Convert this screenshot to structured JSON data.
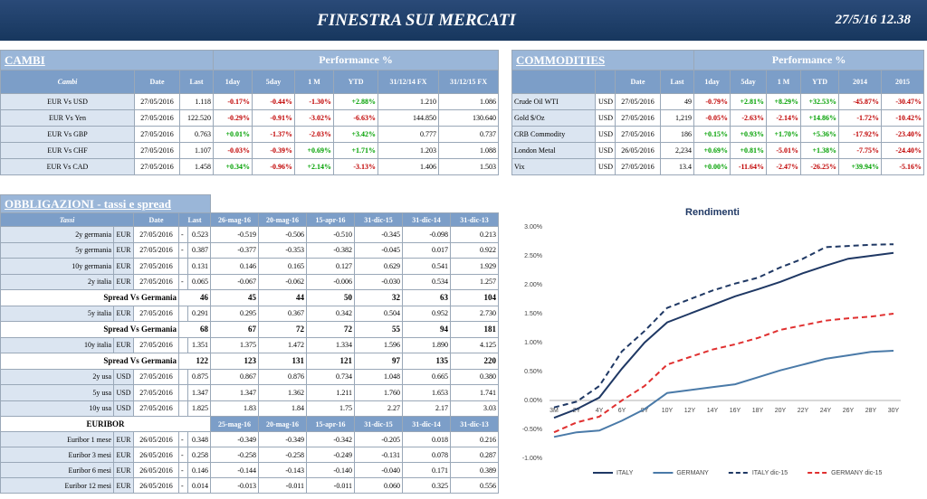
{
  "header": {
    "title": "FINESTRA SUI MERCATI",
    "timestamp": "27/5/16 12.38"
  },
  "cambi": {
    "title": "CAMBI",
    "group": "Performance %",
    "columns": [
      "Cambi",
      "Date",
      "Last",
      "1day",
      "5day",
      "1 M",
      "YTD",
      "31/12/14 FX",
      "31/12/15 FX"
    ],
    "rows": [
      [
        "EUR Vs USD",
        "27/05/2016",
        "1.118",
        "-0.17%",
        "-0.44%",
        "-1.30%",
        "+2.88%",
        "1.210",
        "1.086"
      ],
      [
        "EUR Vs Yen",
        "27/05/2016",
        "122.520",
        "-0.29%",
        "-0.91%",
        "-3.02%",
        "-6.63%",
        "144.850",
        "130.640"
      ],
      [
        "EUR Vs GBP",
        "27/05/2016",
        "0.763",
        "+0.01%",
        "-1.37%",
        "-2.03%",
        "+3.42%",
        "0.777",
        "0.737"
      ],
      [
        "EUR Vs CHF",
        "27/05/2016",
        "1.107",
        "-0.03%",
        "-0.39%",
        "+0.69%",
        "+1.71%",
        "1.203",
        "1.088"
      ],
      [
        "EUR Vs CAD",
        "27/05/2016",
        "1.458",
        "+0.34%",
        "-0.96%",
        "+2.14%",
        "-3.13%",
        "1.406",
        "1.503"
      ]
    ]
  },
  "commodities": {
    "title": "COMMODITIES",
    "group": "Performance %",
    "columns": [
      null,
      null,
      "Date",
      "Last",
      "1day",
      "5day",
      "1 M",
      "YTD",
      "2014",
      "2015"
    ],
    "rows": [
      [
        "Crude Oil WTI",
        "USD",
        "27/05/2016",
        "49",
        "-0.79%",
        "+2.81%",
        "+8.29%",
        "+32.53%",
        "-45.87%",
        "-30.47%"
      ],
      [
        "Gold $/Oz",
        "USD",
        "27/05/2016",
        "1,219",
        "-0.05%",
        "-2.63%",
        "-2.14%",
        "+14.86%",
        "-1.72%",
        "-10.42%"
      ],
      [
        "CRB Commodity",
        "USD",
        "27/05/2016",
        "186",
        "+0.15%",
        "+0.93%",
        "+1.70%",
        "+5.36%",
        "-17.92%",
        "-23.40%"
      ],
      [
        "London Metal",
        "USD",
        "26/05/2016",
        "2,234",
        "+0.69%",
        "+0.81%",
        "-5.01%",
        "+1.38%",
        "-7.75%",
        "-24.40%"
      ],
      [
        "Vix",
        "USD",
        "27/05/2016",
        "13.4",
        "+0.00%",
        "-11.64%",
        "-2.47%",
        "-26.25%",
        "+39.94%",
        "-5.16%"
      ]
    ]
  },
  "bonds": {
    "title": "OBBLIGAZIONI - tassi e spread",
    "columns": [
      "Tassi",
      "Date",
      "Last",
      "26-mag-16",
      "20-mag-16",
      "15-apr-16",
      "31-dic-15",
      "31-dic-14",
      "31-dic-13"
    ],
    "rows": [
      [
        "2y germania",
        "EUR",
        "27/05/2016",
        "-",
        "0.523",
        "-0.519",
        "-0.506",
        "-0.510",
        "-0.345",
        "-0.098",
        "0.213"
      ],
      [
        "5y germania",
        "EUR",
        "27/05/2016",
        "-",
        "0.387",
        "-0.377",
        "-0.353",
        "-0.382",
        "-0.045",
        "0.017",
        "0.922"
      ],
      [
        "10y germania",
        "EUR",
        "27/05/2016",
        null,
        "0.131",
        "0.146",
        "0.165",
        "0.127",
        "0.629",
        "0.541",
        "1.929"
      ],
      [
        "2y italia",
        "EUR",
        "27/05/2016",
        "-",
        "0.065",
        "-0.067",
        "-0.062",
        "-0.006",
        "-0.030",
        "0.534",
        "1.257"
      ],
      [
        "Spread Vs Germania",
        "46",
        "45",
        "44",
        "50",
        "32",
        "63",
        "104"
      ],
      [
        "5y italia",
        "EUR",
        "27/05/2016",
        null,
        "0.291",
        "0.295",
        "0.367",
        "0.342",
        "0.504",
        "0.952",
        "2.730"
      ],
      [
        "Spread Vs Germania",
        "68",
        "67",
        "72",
        "72",
        "55",
        "94",
        "181"
      ],
      [
        "10y italia",
        "EUR",
        "27/05/2016",
        null,
        "1.351",
        "1.375",
        "1.472",
        "1.334",
        "1.596",
        "1.890",
        "4.125"
      ],
      [
        "Spread Vs Germania",
        "122",
        "123",
        "131",
        "121",
        "97",
        "135",
        "220"
      ],
      [
        "2y usa",
        "USD",
        "27/05/2016",
        null,
        "0.875",
        "0.867",
        "0.876",
        "0.734",
        "1.048",
        "0.665",
        "0.380"
      ],
      [
        "5y usa",
        "USD",
        "27/05/2016",
        null,
        "1.347",
        "1.347",
        "1.362",
        "1.211",
        "1.760",
        "1.653",
        "1.741"
      ],
      [
        "10y usa",
        "USD",
        "27/05/2016",
        null,
        "1.825",
        "1.83",
        "1.84",
        "1.75",
        "2.27",
        "2.17",
        "3.03"
      ]
    ],
    "euribor": {
      "columns": [
        "EURIBOR",
        "25-mag-16",
        "20-mag-16",
        "15-apr-16",
        "31-dic-15",
        "31-dic-14",
        "31-dic-13"
      ],
      "rows": [
        [
          "Euribor 1 mese",
          "EUR",
          "26/05/2016",
          "-",
          "0.348",
          "-0.349",
          "-0.349",
          "-0.342",
          "-0.205",
          "0.018",
          "0.216"
        ],
        [
          "Euribor 3 mesi",
          "EUR",
          "26/05/2016",
          "-",
          "0.258",
          "-0.258",
          "-0.258",
          "-0.249",
          "-0.131",
          "0.078",
          "0.287"
        ],
        [
          "Euribor 6 mesi",
          "EUR",
          "26/05/2016",
          "-",
          "0.146",
          "-0.144",
          "-0.143",
          "-0.140",
          "-0.040",
          "0.171",
          "0.389"
        ],
        [
          "Euribor 12 mesi",
          "EUR",
          "26/05/2016",
          "-",
          "0.014",
          "-0.013",
          "-0.011",
          "-0.011",
          "0.060",
          "0.325",
          "0.556"
        ]
      ]
    }
  },
  "chart_data": {
    "type": "line",
    "title": "Rendimenti",
    "categories": [
      "3M",
      "2Y",
      "4Y",
      "6Y",
      "8Y",
      "10Y",
      "12Y",
      "14Y",
      "16Y",
      "18Y",
      "20Y",
      "22Y",
      "24Y",
      "26Y",
      "28Y",
      "30Y"
    ],
    "series": [
      {
        "name": "ITALY",
        "color": "#1f3864",
        "style": "solid",
        "values": [
          -0.3,
          -0.15,
          0.05,
          0.55,
          1.0,
          1.35,
          1.5,
          1.65,
          1.8,
          1.92,
          2.05,
          2.2,
          2.33,
          2.45,
          2.5,
          2.55
        ]
      },
      {
        "name": "GERMANY",
        "color": "#4a7aa8",
        "style": "solid",
        "values": [
          -0.63,
          -0.55,
          -0.52,
          -0.35,
          -0.15,
          0.13,
          0.18,
          0.23,
          0.28,
          0.4,
          0.52,
          0.62,
          0.72,
          0.78,
          0.84,
          0.86
        ]
      },
      {
        "name": "ITALY dic-15",
        "color": "#1f3864",
        "style": "dashed",
        "values": [
          -0.12,
          -0.02,
          0.25,
          0.85,
          1.2,
          1.6,
          1.75,
          1.9,
          2.02,
          2.12,
          2.3,
          2.45,
          2.65,
          2.67,
          2.69,
          2.7
        ]
      },
      {
        "name": "GERMANY dic-15",
        "color": "#e03030",
        "style": "dashed",
        "values": [
          -0.55,
          -0.38,
          -0.28,
          0.0,
          0.25,
          0.62,
          0.75,
          0.88,
          0.97,
          1.08,
          1.22,
          1.3,
          1.38,
          1.42,
          1.45,
          1.5
        ]
      }
    ],
    "ylim": [
      -1,
      3
    ],
    "yticks": [
      {
        "value": -1,
        "label": "-1.00%"
      },
      {
        "value": -0.5,
        "label": "-0.50%"
      },
      {
        "value": 0,
        "label": "0.00%"
      },
      {
        "value": 0.5,
        "label": "0.50%"
      },
      {
        "value": 1,
        "label": "1.00%"
      },
      {
        "value": 1.5,
        "label": "1.50%"
      },
      {
        "value": 2,
        "label": "2.00%"
      },
      {
        "value": 2.5,
        "label": "2.50%"
      },
      {
        "value": 3,
        "label": "3.00%"
      }
    ],
    "grid": false,
    "legend": "bottom"
  }
}
